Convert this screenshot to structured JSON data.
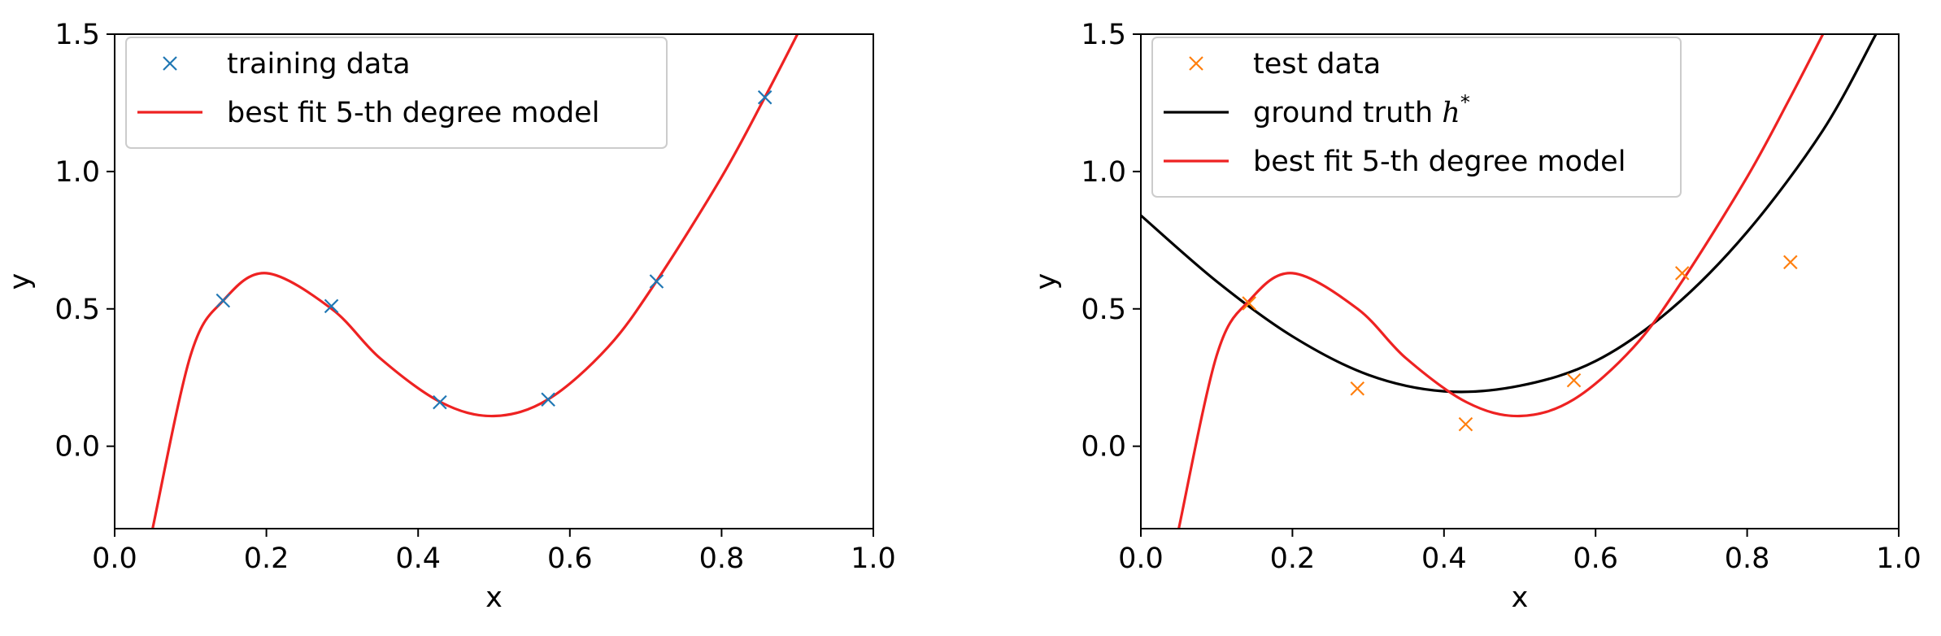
{
  "chart_data": [
    {
      "type": "line",
      "xlabel": "x",
      "ylabel": "y",
      "xlim": [
        0.0,
        1.0
      ],
      "ylim": [
        -0.3,
        1.5
      ],
      "xticks": [
        "0.0",
        "0.2",
        "0.4",
        "0.6",
        "0.8",
        "1.0"
      ],
      "xtick_values": [
        0.0,
        0.2,
        0.4,
        0.6,
        0.8,
        1.0
      ],
      "yticks": [
        "0.0",
        "0.5",
        "1.0",
        "1.5"
      ],
      "ytick_values": [
        0.0,
        0.5,
        1.0,
        1.5
      ],
      "grid": false,
      "legend_position": "top-left",
      "series": [
        {
          "name": "training data",
          "kind": "scatter",
          "marker": "x",
          "color": "#1f77b4",
          "x": [
            0.1429,
            0.2857,
            0.4286,
            0.5714,
            0.7143,
            0.8571
          ],
          "y": [
            0.53,
            0.51,
            0.16,
            0.17,
            0.6,
            1.27
          ]
        },
        {
          "name": "best fit 5-th degree model",
          "kind": "line",
          "color": "#ee2222",
          "x": [
            0.05,
            0.1,
            0.143,
            0.2,
            0.286,
            0.35,
            0.43,
            0.5,
            0.571,
            0.65,
            0.714,
            0.8,
            0.857,
            0.9
          ],
          "y": [
            -0.3,
            0.33,
            0.53,
            0.63,
            0.5,
            0.32,
            0.16,
            0.11,
            0.17,
            0.36,
            0.6,
            0.98,
            1.27,
            1.5
          ]
        }
      ]
    },
    {
      "type": "line",
      "xlabel": "x",
      "ylabel": "y",
      "xlim": [
        0.0,
        1.0
      ],
      "ylim": [
        -0.3,
        1.5
      ],
      "xticks": [
        "0.0",
        "0.2",
        "0.4",
        "0.6",
        "0.8",
        "1.0"
      ],
      "xtick_values": [
        0.0,
        0.2,
        0.4,
        0.6,
        0.8,
        1.0
      ],
      "yticks": [
        "0.0",
        "0.5",
        "1.0",
        "1.5"
      ],
      "ytick_values": [
        0.0,
        0.5,
        1.0,
        1.5
      ],
      "grid": false,
      "legend_position": "top-left",
      "series": [
        {
          "name": "test data",
          "kind": "scatter",
          "marker": "x",
          "color": "#ff7f0e",
          "x": [
            0.1429,
            0.2857,
            0.4286,
            0.5714,
            0.7143,
            0.8571
          ],
          "y": [
            0.52,
            0.21,
            0.08,
            0.24,
            0.63,
            0.67
          ]
        },
        {
          "name": "ground truth ",
          "name_math": "h",
          "name_sup": "*",
          "kind": "line",
          "color": "#000000",
          "x": [
            0.0,
            0.1,
            0.2,
            0.3,
            0.4,
            0.5,
            0.6,
            0.7,
            0.8,
            0.9,
            0.97
          ],
          "y": [
            0.84,
            0.6,
            0.4,
            0.26,
            0.2,
            0.22,
            0.31,
            0.5,
            0.78,
            1.15,
            1.5
          ]
        },
        {
          "name": "best fit 5-th degree model",
          "kind": "line",
          "color": "#ee2222",
          "x": [
            0.05,
            0.1,
            0.143,
            0.2,
            0.286,
            0.35,
            0.43,
            0.5,
            0.571,
            0.65,
            0.714,
            0.8,
            0.857,
            0.9
          ],
          "y": [
            -0.3,
            0.33,
            0.53,
            0.63,
            0.5,
            0.32,
            0.16,
            0.11,
            0.17,
            0.36,
            0.6,
            0.98,
            1.27,
            1.5
          ]
        }
      ]
    }
  ]
}
